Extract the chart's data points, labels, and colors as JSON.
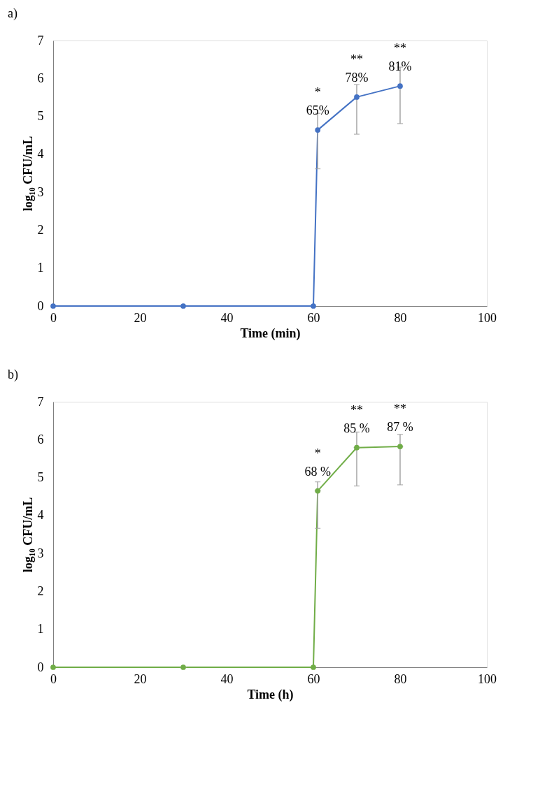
{
  "chart_data": [
    {
      "type": "line",
      "title": "a)",
      "xlabel": "Time (min)",
      "ylabel": "log₁₀ CFU/mL",
      "x": [
        0,
        30,
        60,
        61,
        70,
        80
      ],
      "series": [
        {
          "color": "#4472c4",
          "values": [
            0,
            0,
            0,
            4.64,
            5.51,
            5.8
          ],
          "errors": [
            null,
            null,
            null,
            [
              3.62,
              5.08
            ],
            [
              4.53,
              5.84
            ],
            [
              4.81,
              6.3
            ]
          ]
        }
      ],
      "xlim": [
        0,
        100
      ],
      "xticks": [
        0,
        20,
        40,
        60,
        80,
        100
      ],
      "ylim": [
        0,
        7
      ],
      "yticks": [
        0,
        1,
        2,
        3,
        4,
        5,
        6,
        7
      ],
      "grid": false,
      "marker": "circle",
      "line_style": "solid",
      "annotations": [
        {
          "text": "*\n65%",
          "x": 61,
          "y": 4.64
        },
        {
          "text": "**\n78%",
          "x": 70,
          "y": 5.51
        },
        {
          "text": "**\n81%",
          "x": 80,
          "y": 5.8
        }
      ]
    },
    {
      "type": "line",
      "title": "b)",
      "xlabel": "Time (h)",
      "ylabel": "log₁₀ CFU/mL",
      "x": [
        0,
        30,
        60,
        61,
        70,
        80
      ],
      "series": [
        {
          "color": "#70ad47",
          "values": [
            0,
            0,
            0,
            4.65,
            5.79,
            5.82
          ],
          "errors": [
            null,
            null,
            null,
            [
              3.66,
              4.89
            ],
            [
              4.78,
              6.2
            ],
            [
              4.81,
              6.14
            ]
          ],
          "xerrors": [
            null,
            0.7,
            null,
            0.7,
            0.7,
            0.7
          ]
        }
      ],
      "xlim": [
        0,
        100
      ],
      "xticks": [
        0,
        20,
        40,
        60,
        80,
        100
      ],
      "ylim": [
        0,
        7
      ],
      "yticks": [
        0,
        1,
        2,
        3,
        4,
        5,
        6,
        7
      ],
      "grid": false,
      "marker": "circle",
      "line_style": "solid",
      "annotations": [
        {
          "text": "*\n68 %",
          "x": 61,
          "y": 4.65
        },
        {
          "text": "**\n85 %",
          "x": 70,
          "y": 5.79
        },
        {
          "text": "**\n87 %",
          "x": 80,
          "y": 5.82
        }
      ]
    }
  ]
}
